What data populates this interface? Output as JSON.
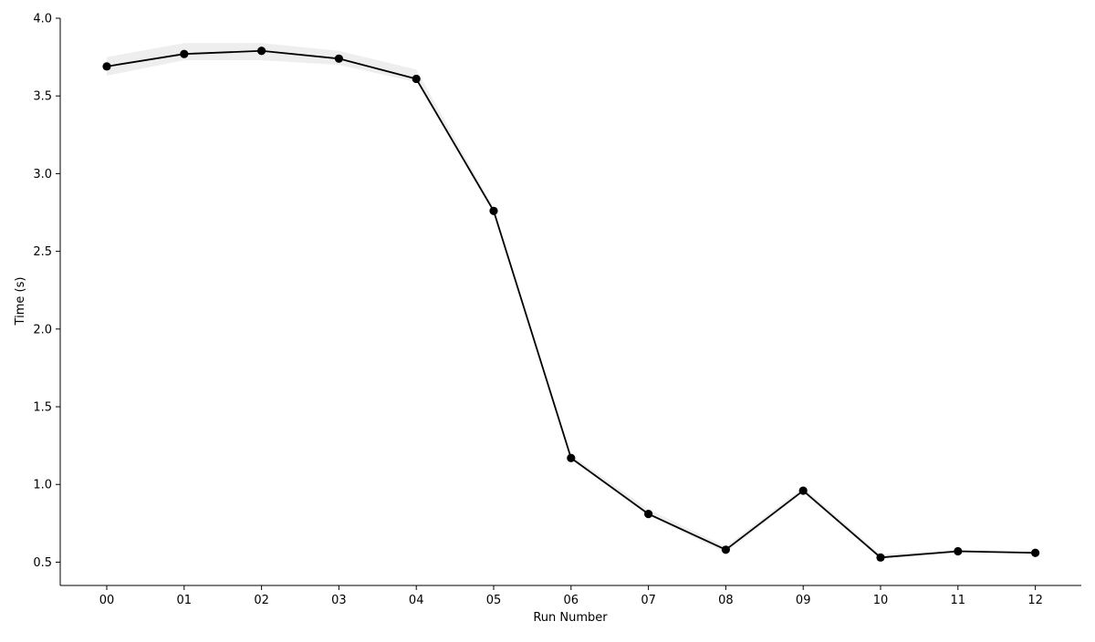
{
  "chart_data": {
    "type": "line",
    "title": "",
    "xlabel": "Run Number",
    "ylabel": "Time (s)",
    "categories": [
      "00",
      "01",
      "02",
      "03",
      "04",
      "05",
      "06",
      "07",
      "08",
      "09",
      "10",
      "11",
      "12"
    ],
    "series": [
      {
        "values": [
          3.69,
          3.77,
          3.79,
          3.74,
          3.61,
          2.76,
          1.17,
          0.81,
          0.58,
          0.96,
          0.53,
          0.57,
          0.56
        ],
        "lower": [
          3.63,
          3.73,
          3.73,
          3.7,
          3.59,
          2.75,
          1.16,
          0.8,
          0.56,
          0.95,
          0.52,
          0.56,
          0.56
        ],
        "upper": [
          3.75,
          3.84,
          3.84,
          3.79,
          3.67,
          2.78,
          1.19,
          0.84,
          0.6,
          0.98,
          0.55,
          0.58,
          0.57
        ],
        "color": "#000000",
        "band_color": "#d9d9d9",
        "marker": "circle"
      }
    ],
    "yticks": [
      "0.5",
      "1.0",
      "1.5",
      "2.0",
      "2.5",
      "3.0",
      "3.5",
      "4.0"
    ],
    "ylim": [
      0.35,
      4.0
    ],
    "grid": false,
    "spines": "left-bottom"
  }
}
